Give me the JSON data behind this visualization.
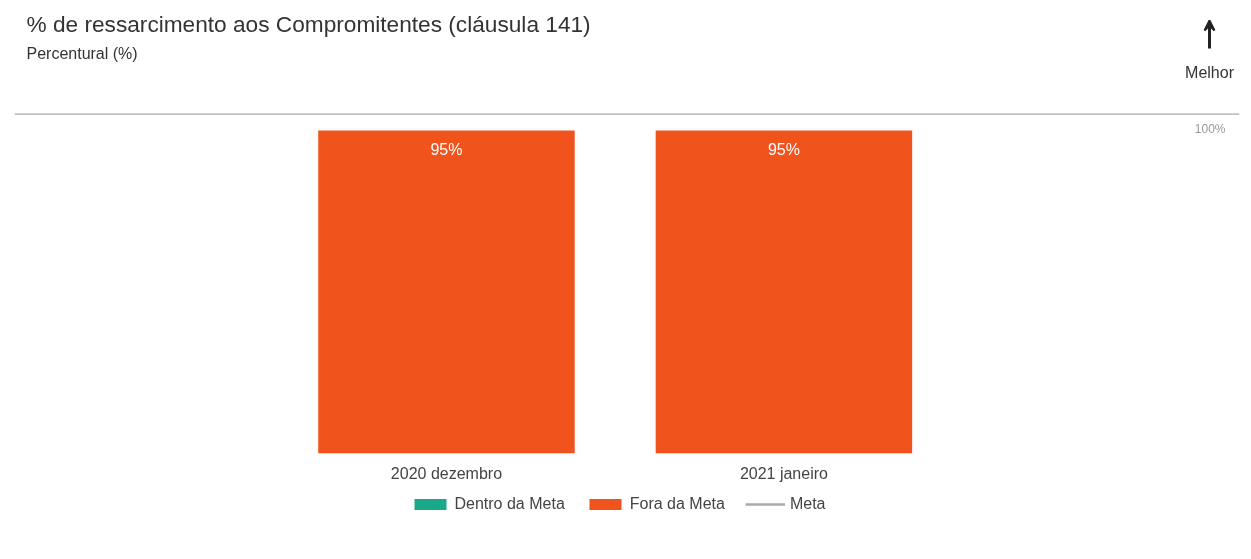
{
  "chart_data": {
    "type": "bar",
    "title": "% de ressarcimento aos Compromitentes (cláusula 141)",
    "subtitle": "Percentural (%)",
    "annotations": [
      "Melhor",
      {
        "text": "100%",
        "y": 100
      }
    ],
    "categories": [
      "2020 dezembro",
      "2021 janeiro"
    ],
    "series": [
      {
        "name": "Dentro da Meta",
        "color": "#1aa88a",
        "values": [
          null,
          null
        ]
      },
      {
        "name": "Fora da Meta",
        "color": "#f0531c",
        "values": [
          95,
          95
        ],
        "value_labels": [
          "95%",
          "95%"
        ]
      }
    ],
    "ref_lines": [
      {
        "axis": "y",
        "value": 100,
        "label": "Meta",
        "color": "#aaaaaa"
      }
    ],
    "ylim": [
      0,
      100
    ],
    "legend": "bottom"
  }
}
